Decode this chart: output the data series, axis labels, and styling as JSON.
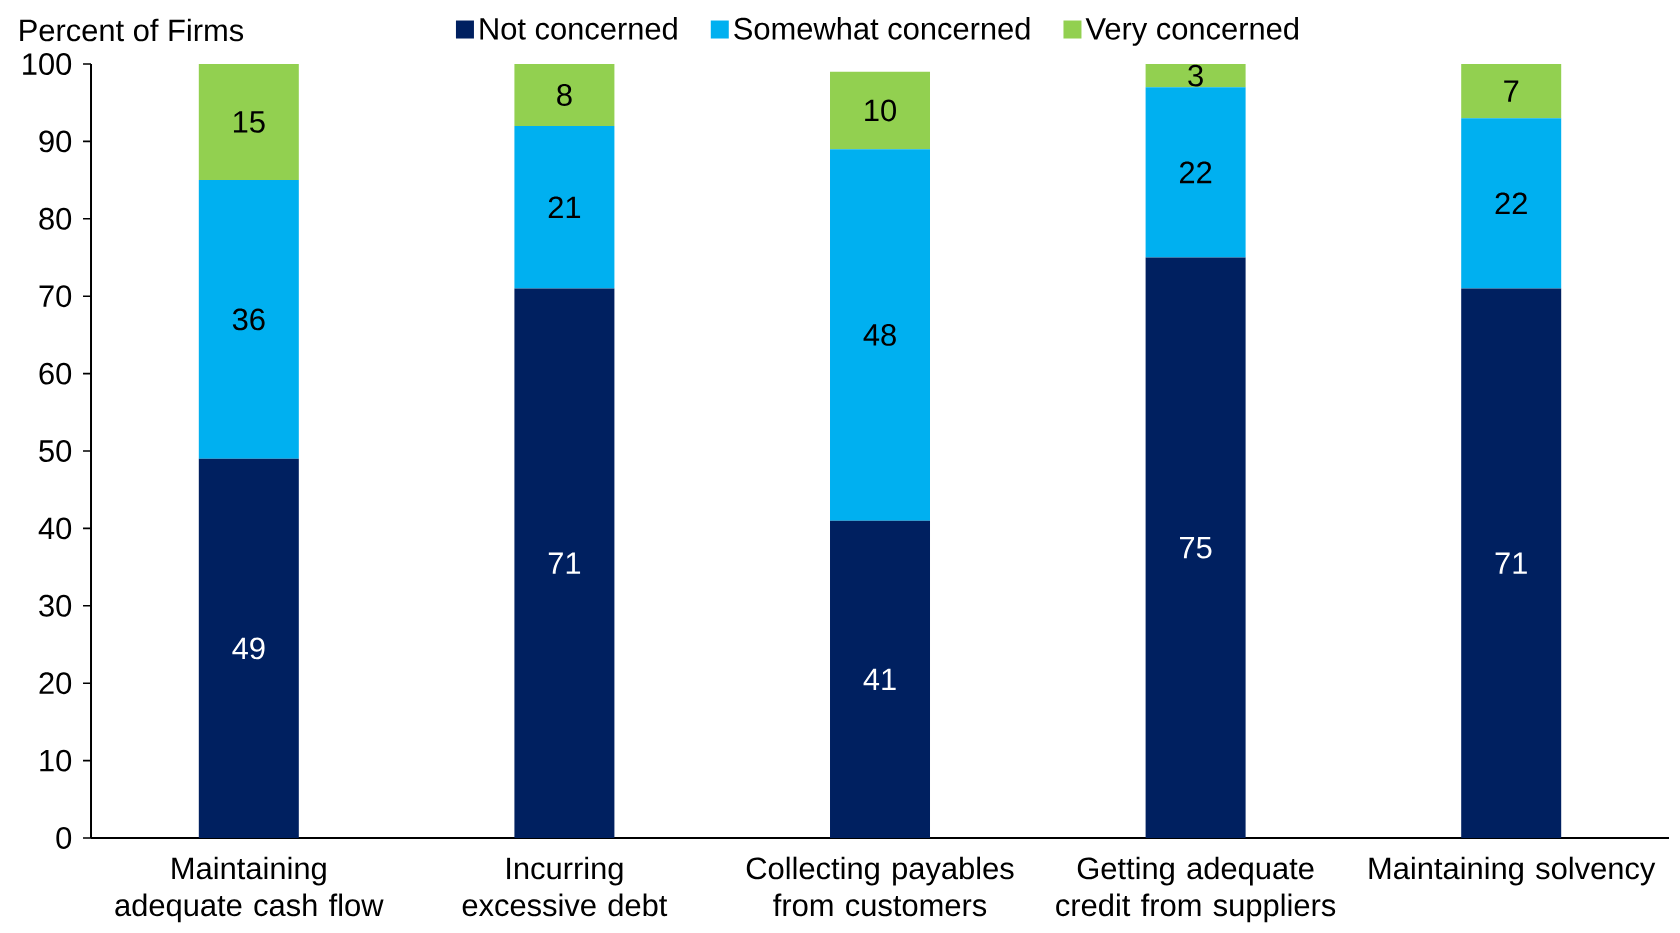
{
  "chart_data": {
    "type": "bar",
    "stacked": true,
    "ylabel": "Percent of Firms",
    "categories": [
      "Maintaining adequate cash flow",
      "Incurring excessive debt",
      "Collecting payables from customers",
      "Getting adequate credit from suppliers",
      "Maintaining solvency"
    ],
    "series": [
      {
        "name": "Not concerned",
        "color": "#002060",
        "values": [
          49,
          71,
          41,
          75,
          71
        ]
      },
      {
        "name": "Somewhat concerned",
        "color": "#00b0f0",
        "values": [
          36,
          21,
          48,
          22,
          22
        ]
      },
      {
        "name": "Very concerned",
        "color": "#92d050",
        "values": [
          15,
          8,
          10,
          3,
          7
        ]
      }
    ],
    "ylim": [
      0,
      100
    ],
    "yticks": [
      0,
      10,
      20,
      30,
      40,
      50,
      60,
      70,
      80,
      90,
      100
    ],
    "data_labels": true,
    "grid": false,
    "legend": "top"
  }
}
